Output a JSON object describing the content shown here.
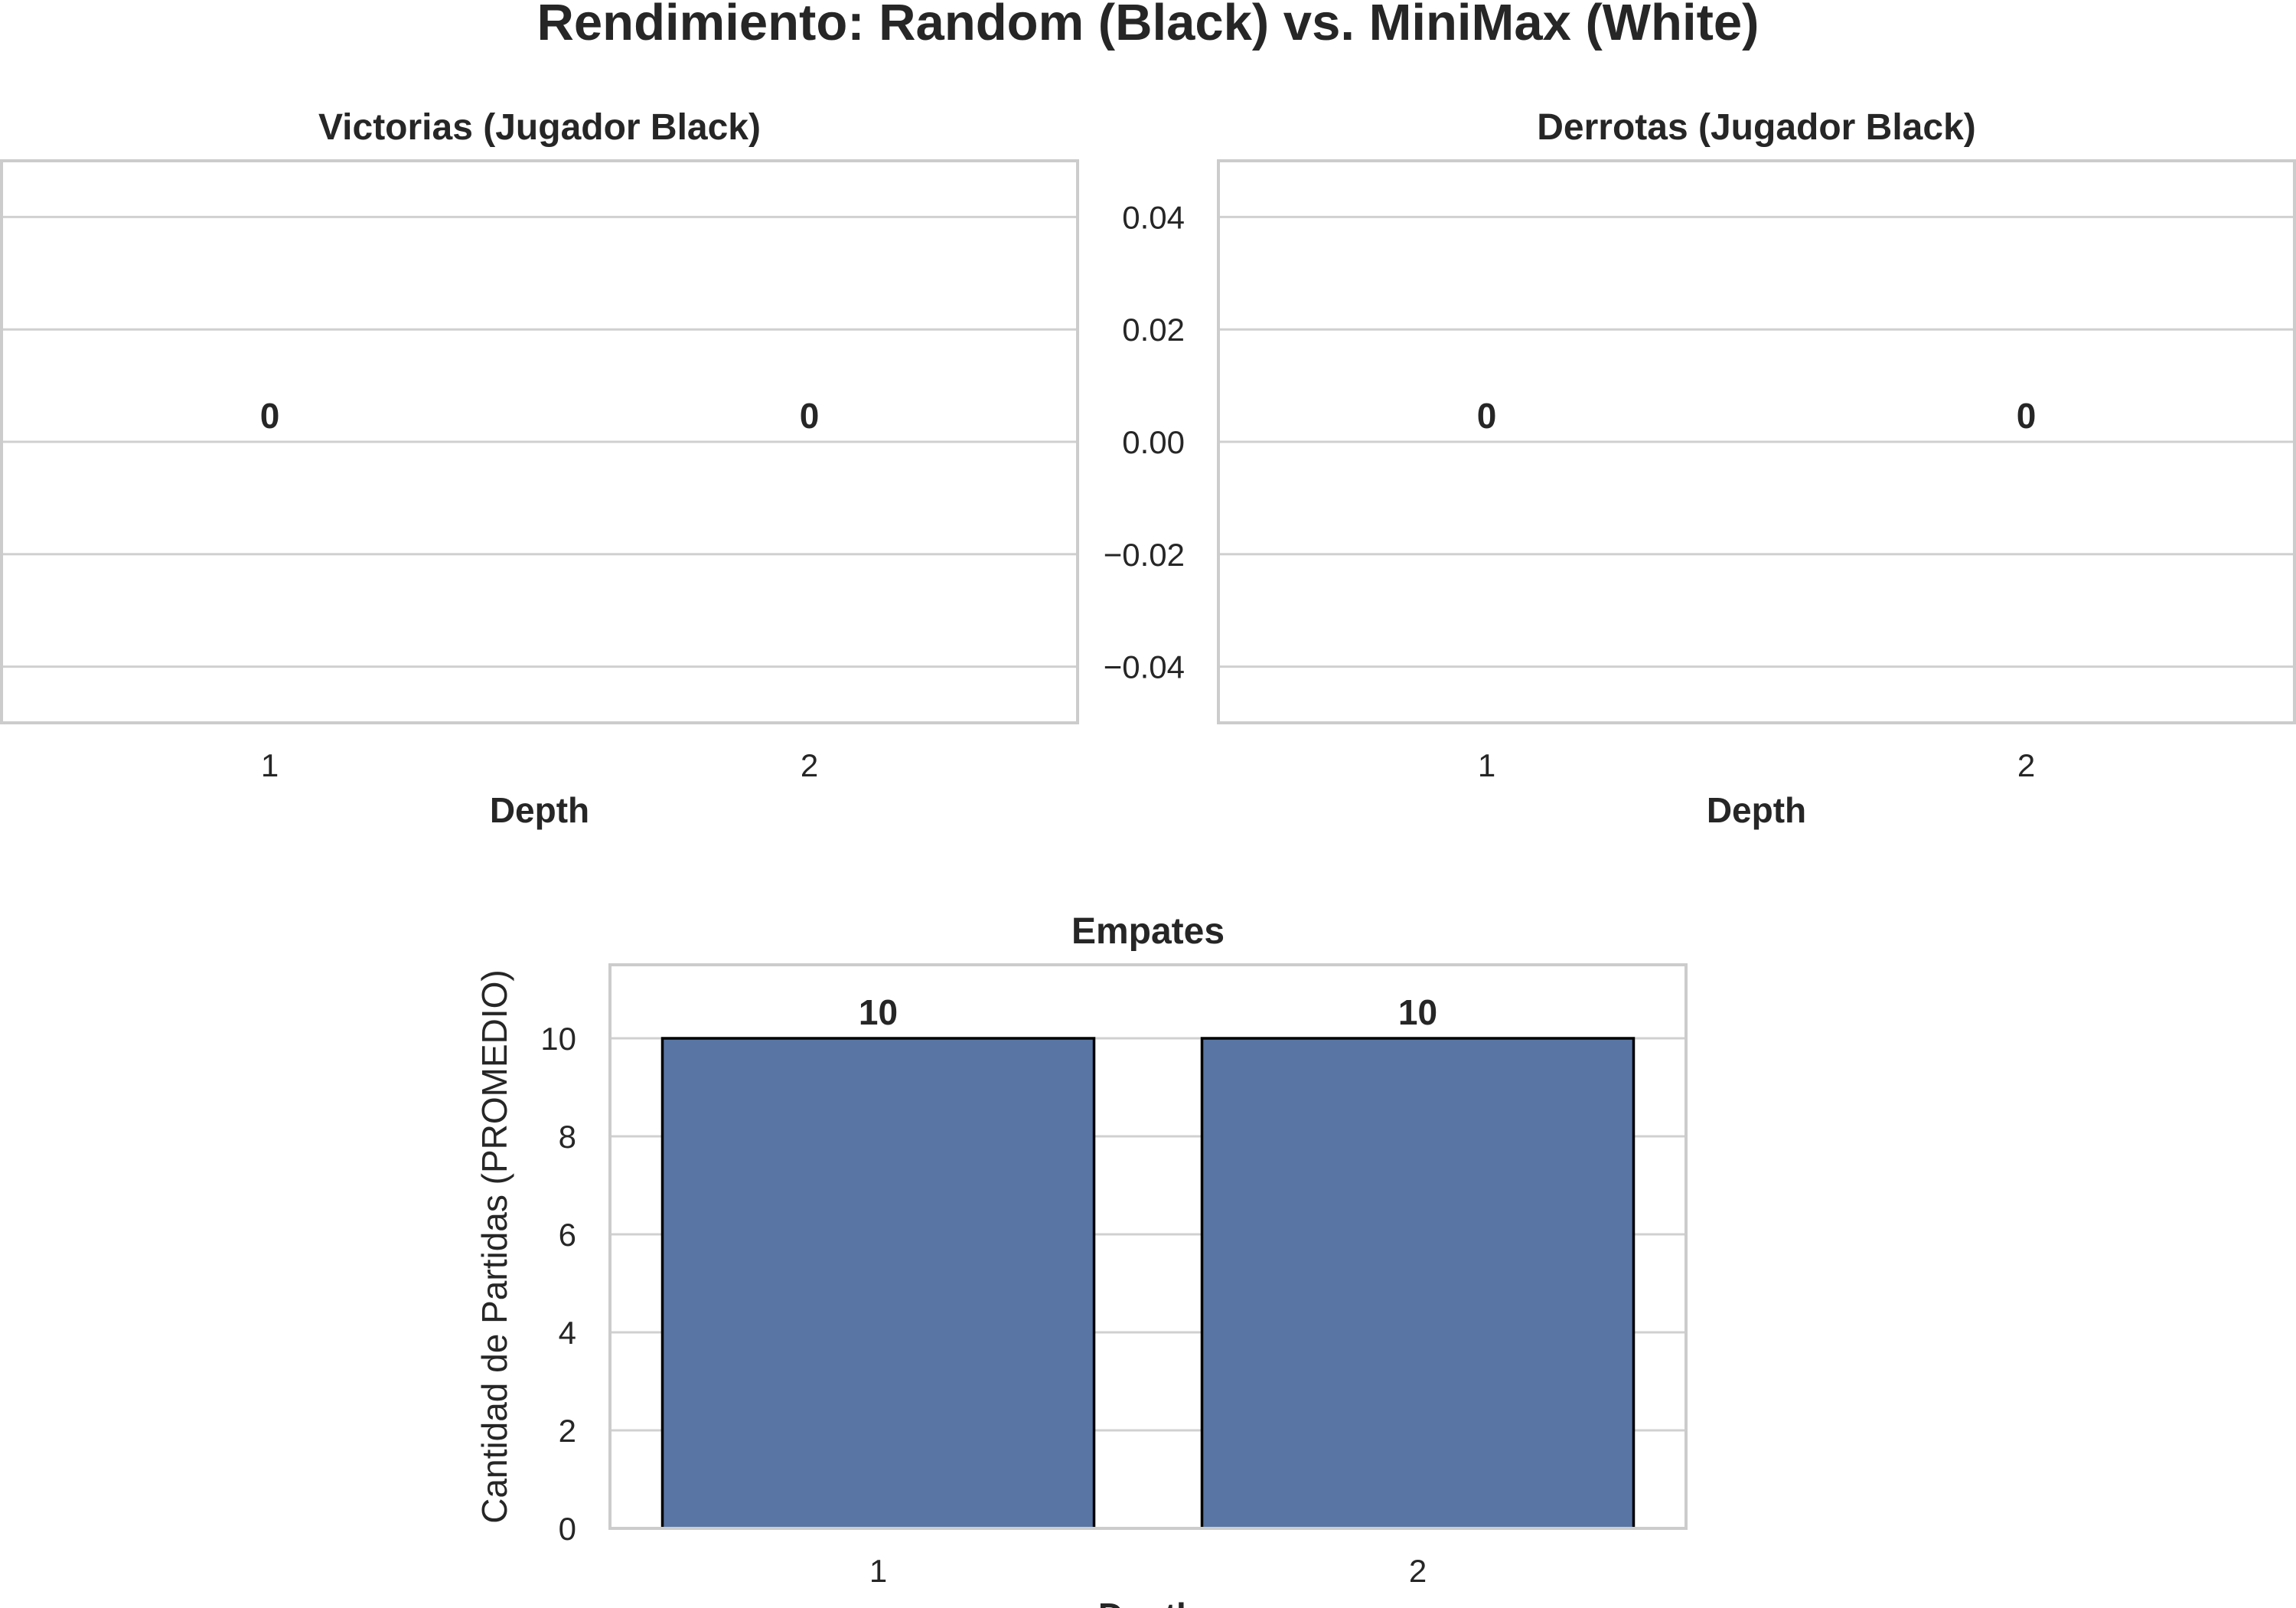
{
  "figure": {
    "title": "Rendimiento: Random (Black) vs. MiniMax (White)"
  },
  "colors": {
    "bar": "#5875A4",
    "bar_edge": "#000000",
    "grid": "#D0D0D0",
    "spine": "#CCCCCC",
    "text": "#262626"
  },
  "chart_data": [
    {
      "type": "bar",
      "title": "Victorias (Jugador Black)",
      "xlabel": "Depth",
      "ylabel": "",
      "categories": [
        "1",
        "2"
      ],
      "values": [
        0,
        0
      ],
      "data_labels": [
        "0",
        "0"
      ],
      "ylim": [
        -0.05,
        0.05
      ],
      "yticks": [
        -0.04,
        -0.02,
        0.0,
        0.02,
        0.04
      ],
      "ytick_labels": [],
      "grid": true
    },
    {
      "type": "bar",
      "title": "Derrotas (Jugador Black)",
      "xlabel": "Depth",
      "ylabel": "",
      "categories": [
        "1",
        "2"
      ],
      "values": [
        0,
        0
      ],
      "data_labels": [
        "0",
        "0"
      ],
      "ylim": [
        -0.05,
        0.05
      ],
      "yticks": [
        -0.04,
        -0.02,
        0.0,
        0.02,
        0.04
      ],
      "ytick_labels": [
        "−0.04",
        "−0.02",
        "0.00",
        "0.02",
        "0.04"
      ],
      "grid": true
    },
    {
      "type": "bar",
      "title": "Empates",
      "xlabel": "Depth",
      "ylabel": "Cantidad de Partidas (PROMEDIO)",
      "categories": [
        "1",
        "2"
      ],
      "values": [
        10,
        10
      ],
      "data_labels": [
        "10",
        "10"
      ],
      "ylim": [
        0,
        11.5
      ],
      "yticks": [
        0,
        2,
        4,
        6,
        8,
        10
      ],
      "ytick_labels": [
        "0",
        "2",
        "4",
        "6",
        "8",
        "10"
      ],
      "grid": true
    }
  ]
}
